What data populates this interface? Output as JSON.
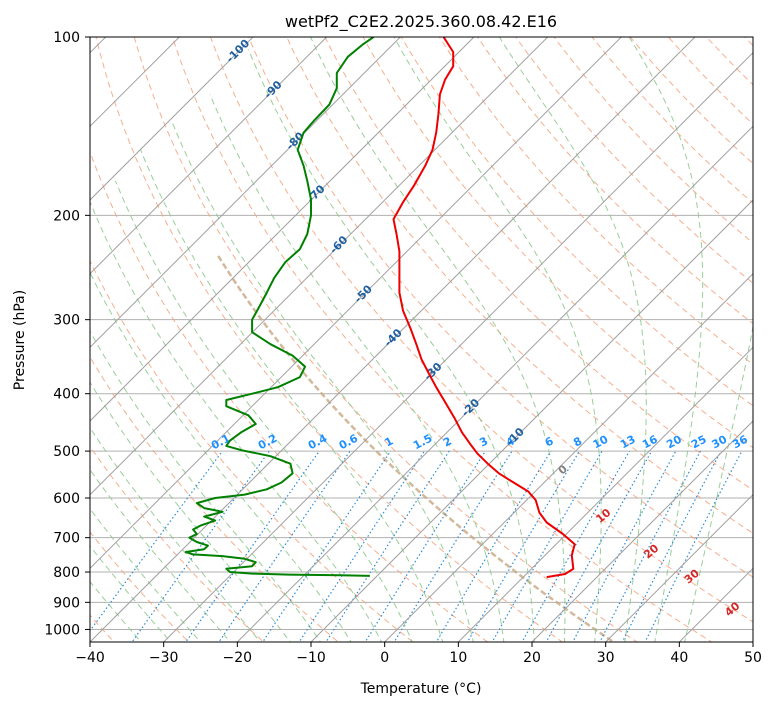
{
  "chart_data": {
    "type": "line",
    "title": "wetPf2_C2E2.2025.360.08.42.E16",
    "xlabel": "Temperature (°C)",
    "ylabel": "Pressure (hPa)",
    "xlim": [
      -40,
      50
    ],
    "ylim": [
      1050,
      100
    ],
    "y_scale": "log",
    "grid": true,
    "x_ticks": [
      -40,
      -30,
      -20,
      -10,
      0,
      10,
      20,
      30,
      40,
      50
    ],
    "x_tick_labels": [
      "−40",
      "−30",
      "−20",
      "−10",
      "0",
      "10",
      "20",
      "30",
      "40",
      "50"
    ],
    "y_ticks": [
      100,
      200,
      300,
      400,
      500,
      600,
      700,
      800,
      900,
      1000
    ],
    "y_tick_labels": [
      "100",
      "200",
      "300",
      "400",
      "500",
      "600",
      "700",
      "800",
      "900",
      "1000"
    ],
    "colors": {
      "temperature": "#ee0000",
      "dewpoint": "#008000",
      "isotherm": "#a0a0a0",
      "dry_adiabat": "#f5a07a",
      "moist_adiabat": "#8ec98e",
      "mixing_ratio": "#2d8bd8",
      "lcl_line": "#c8a882",
      "ann_temperature": "#1f5fa0",
      "ann_mixing": "#1e90ff",
      "ann_theta_e": "#d62728",
      "ann_zero": "#808080"
    },
    "series": [
      {
        "key": "temperature",
        "points": [
          [
            22.0,
            816
          ],
          [
            24.5,
            806
          ],
          [
            25.6,
            790
          ],
          [
            25.4,
            750
          ],
          [
            25.8,
            718
          ],
          [
            24.2,
            690
          ],
          [
            22.0,
            660
          ],
          [
            21.0,
            635
          ],
          [
            20.5,
            605
          ],
          [
            19.5,
            585
          ],
          [
            17.5,
            565
          ],
          [
            15.5,
            545
          ],
          [
            14.0,
            525
          ],
          [
            12.6,
            505
          ],
          [
            11.8,
            490
          ],
          [
            10.5,
            465
          ],
          [
            9.5,
            440
          ],
          [
            8.3,
            415
          ],
          [
            7.0,
            390
          ],
          [
            6.0,
            370
          ],
          [
            5.0,
            350
          ],
          [
            4.3,
            330
          ],
          [
            3.5,
            310
          ],
          [
            2.5,
            290
          ],
          [
            2.0,
            270
          ],
          [
            2.0,
            250
          ],
          [
            2.0,
            230
          ],
          [
            1.6,
            215
          ],
          [
            1.2,
            203
          ],
          [
            2.5,
            190
          ],
          [
            4.0,
            178
          ],
          [
            5.5,
            165
          ],
          [
            6.5,
            155
          ],
          [
            7.0,
            145
          ],
          [
            7.3,
            135
          ],
          [
            7.5,
            125
          ],
          [
            8.2,
            118
          ],
          [
            9.3,
            112
          ],
          [
            9.3,
            106
          ],
          [
            8.0,
            100
          ]
        ]
      },
      {
        "key": "dewpoint",
        "points": [
          [
            -2.0,
            812
          ],
          [
            -6.0,
            810
          ],
          [
            -13.0,
            808
          ],
          [
            -18.0,
            805
          ],
          [
            -21.0,
            800
          ],
          [
            -21.5,
            790
          ],
          [
            -18.0,
            782
          ],
          [
            -17.5,
            770
          ],
          [
            -19.0,
            760
          ],
          [
            -22.0,
            752
          ],
          [
            -26.0,
            747
          ],
          [
            -27.0,
            740
          ],
          [
            -24.5,
            732
          ],
          [
            -24.0,
            722
          ],
          [
            -25.5,
            712
          ],
          [
            -26.5,
            700
          ],
          [
            -25.5,
            690
          ],
          [
            -26.0,
            678
          ],
          [
            -25.0,
            668
          ],
          [
            -23.0,
            655
          ],
          [
            -24.5,
            645
          ],
          [
            -22.0,
            633
          ],
          [
            -24.5,
            624
          ],
          [
            -25.5,
            612
          ],
          [
            -23.0,
            600
          ],
          [
            -19.0,
            592
          ],
          [
            -16.0,
            580
          ],
          [
            -14.0,
            565
          ],
          [
            -12.5,
            545
          ],
          [
            -12.8,
            525
          ],
          [
            -15.5,
            510
          ],
          [
            -19.5,
            498
          ],
          [
            -21.5,
            490
          ],
          [
            -21.0,
            480
          ],
          [
            -19.5,
            465
          ],
          [
            -17.5,
            450
          ],
          [
            -18.5,
            435
          ],
          [
            -21.5,
            420
          ],
          [
            -21.5,
            410
          ],
          [
            -18.0,
            400
          ],
          [
            -14.5,
            390
          ],
          [
            -11.5,
            375
          ],
          [
            -10.8,
            360
          ],
          [
            -12.5,
            345
          ],
          [
            -15.5,
            330
          ],
          [
            -18.0,
            315
          ],
          [
            -18.0,
            300
          ],
          [
            -17.0,
            285
          ],
          [
            -16.0,
            270
          ],
          [
            -15.0,
            255
          ],
          [
            -13.5,
            240
          ],
          [
            -11.5,
            228
          ],
          [
            -10.5,
            215
          ],
          [
            -10.0,
            200
          ],
          [
            -10.0,
            188
          ],
          [
            -10.5,
            175
          ],
          [
            -11.0,
            165
          ],
          [
            -11.8,
            155
          ],
          [
            -11.0,
            145
          ],
          [
            -9.5,
            138
          ],
          [
            -7.5,
            130
          ],
          [
            -6.5,
            122
          ],
          [
            -6.5,
            115
          ],
          [
            -5.0,
            108
          ],
          [
            -3.0,
            103
          ],
          [
            -1.5,
            100
          ]
        ]
      }
    ],
    "annotations": {
      "isotherm_labels": [
        "-100",
        "-90",
        "-80",
        "-70",
        "-60",
        "-50",
        "-40",
        "-30",
        "-20",
        "-10"
      ],
      "mixing_ratio_labels": [
        "0.1",
        "0.2",
        "0.4",
        "0.6",
        "1",
        "1.5",
        "2",
        "3",
        "4",
        "6",
        "8",
        "10",
        "13",
        "16",
        "20",
        "25",
        "30",
        "36"
      ],
      "theta_e_labels": [
        "0",
        "10",
        "20",
        "30",
        "40"
      ]
    }
  }
}
